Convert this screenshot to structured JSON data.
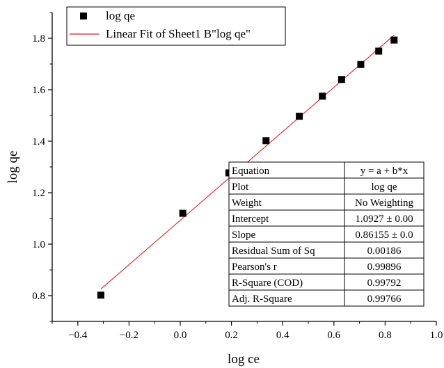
{
  "chart_data": {
    "type": "scatter",
    "title": "",
    "xlabel": "log ce",
    "ylabel": "log qe",
    "xlim": [
      -0.5,
      1.0
    ],
    "ylim": [
      0.7,
      1.9
    ],
    "x_ticks": [
      -0.4,
      -0.2,
      0.0,
      0.2,
      0.4,
      0.6,
      0.8,
      1.0
    ],
    "x_tick_labels": [
      "−0.4",
      "−0.2",
      "0.0",
      "0.2",
      "0.4",
      "0.6",
      "0.8",
      "1.0"
    ],
    "y_ticks": [
      0.8,
      1.0,
      1.2,
      1.4,
      1.6,
      1.8
    ],
    "y_tick_labels": [
      "0.8",
      "1.0",
      "1.2",
      "1.4",
      "1.6",
      "1.8"
    ],
    "grid": false,
    "legend_position": "top-left",
    "series": [
      {
        "name": "log qe",
        "kind": "scatter",
        "marker": "square",
        "color": "#000000",
        "x": [
          -0.31,
          0.01,
          0.19,
          0.335,
          0.465,
          0.555,
          0.63,
          0.705,
          0.775,
          0.835
        ],
        "y": [
          0.802,
          1.12,
          1.277,
          1.402,
          1.497,
          1.575,
          1.64,
          1.698,
          1.75,
          1.793
        ]
      },
      {
        "name": "Linear Fit of Sheet1 B\"log qe\"",
        "kind": "line",
        "color": "#e31a1c",
        "x": [
          -0.31,
          0.835
        ],
        "y": [
          0.8256,
          1.8119
        ]
      }
    ],
    "fit_table": {
      "rows": [
        [
          "Equation",
          "y = a + b*x"
        ],
        [
          "Plot",
          "log qe"
        ],
        [
          "Weight",
          "No Weighting"
        ],
        [
          "Intercept",
          "1.0927 ± 0.00"
        ],
        [
          "Slope",
          "0.86155 ± 0.0"
        ],
        [
          "Residual Sum of Sq",
          "0.00186"
        ],
        [
          "Pearson's r",
          "0.99896"
        ],
        [
          "R-Square (COD)",
          "0.99792"
        ],
        [
          "Adj. R-Square",
          "0.99766"
        ]
      ]
    }
  }
}
